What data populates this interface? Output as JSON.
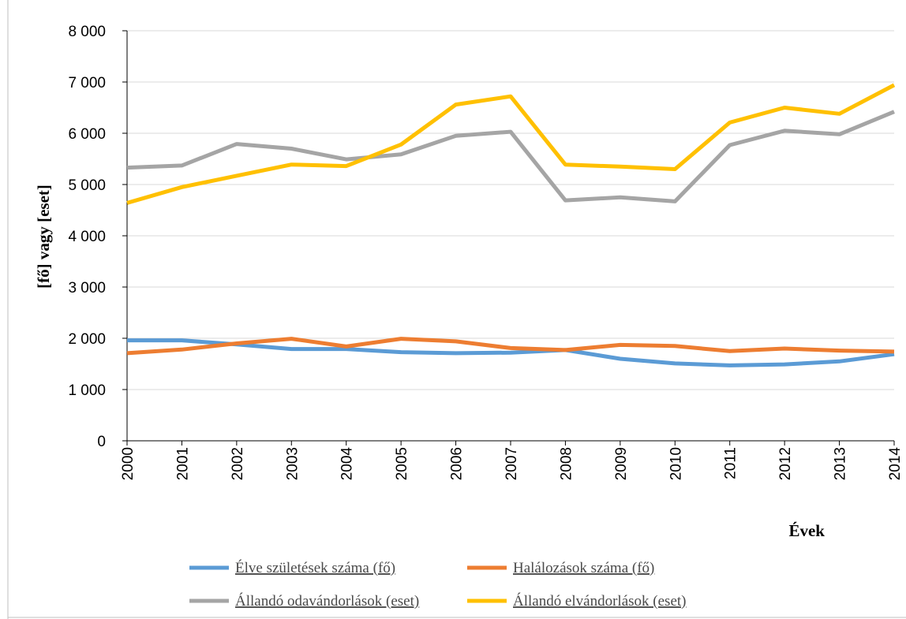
{
  "chart_data": {
    "type": "line",
    "title": "",
    "xlabel": "Évek",
    "ylabel": "[fő]  vagy [eset]",
    "ylim": [
      0,
      8000
    ],
    "yticks": [
      0,
      1000,
      2000,
      3000,
      4000,
      5000,
      6000,
      7000,
      8000
    ],
    "ytick_labels": [
      "0",
      "1 000",
      "2 000",
      "3 000",
      "4 000",
      "5 000",
      "6 000",
      "7 000",
      "8 000"
    ],
    "grid": "horizontal",
    "legend_position": "bottom",
    "categories": [
      "2000",
      "2001",
      "2002",
      "2003",
      "2004",
      "2005",
      "2006",
      "2007",
      "2008",
      "2009",
      "2010",
      "2011",
      "2012",
      "2013",
      "2014"
    ],
    "series": [
      {
        "name": "Élve születések száma (fő)",
        "color": "#5B9BD5",
        "values": [
          1960,
          1960,
          1880,
          1790,
          1790,
          1730,
          1710,
          1720,
          1770,
          1600,
          1510,
          1470,
          1490,
          1550,
          1690
        ]
      },
      {
        "name": "Halálozások száma (fő)",
        "color": "#ED7D31",
        "values": [
          1710,
          1780,
          1900,
          1990,
          1840,
          1990,
          1940,
          1810,
          1770,
          1870,
          1850,
          1750,
          1800,
          1760,
          1740
        ]
      },
      {
        "name": "Állandó odavándorlások (eset)",
        "color": "#A5A5A5",
        "values": [
          5330,
          5370,
          5790,
          5700,
          5490,
          5590,
          5950,
          6030,
          4690,
          4750,
          4670,
          5770,
          6050,
          5980,
          6420
        ]
      },
      {
        "name": "Állandó elvándorlások (eset)",
        "color": "#FFC000",
        "values": [
          4640,
          4950,
          5170,
          5390,
          5360,
          5780,
          6560,
          6720,
          5390,
          5350,
          5300,
          6210,
          6500,
          6380,
          6940
        ]
      }
    ]
  }
}
